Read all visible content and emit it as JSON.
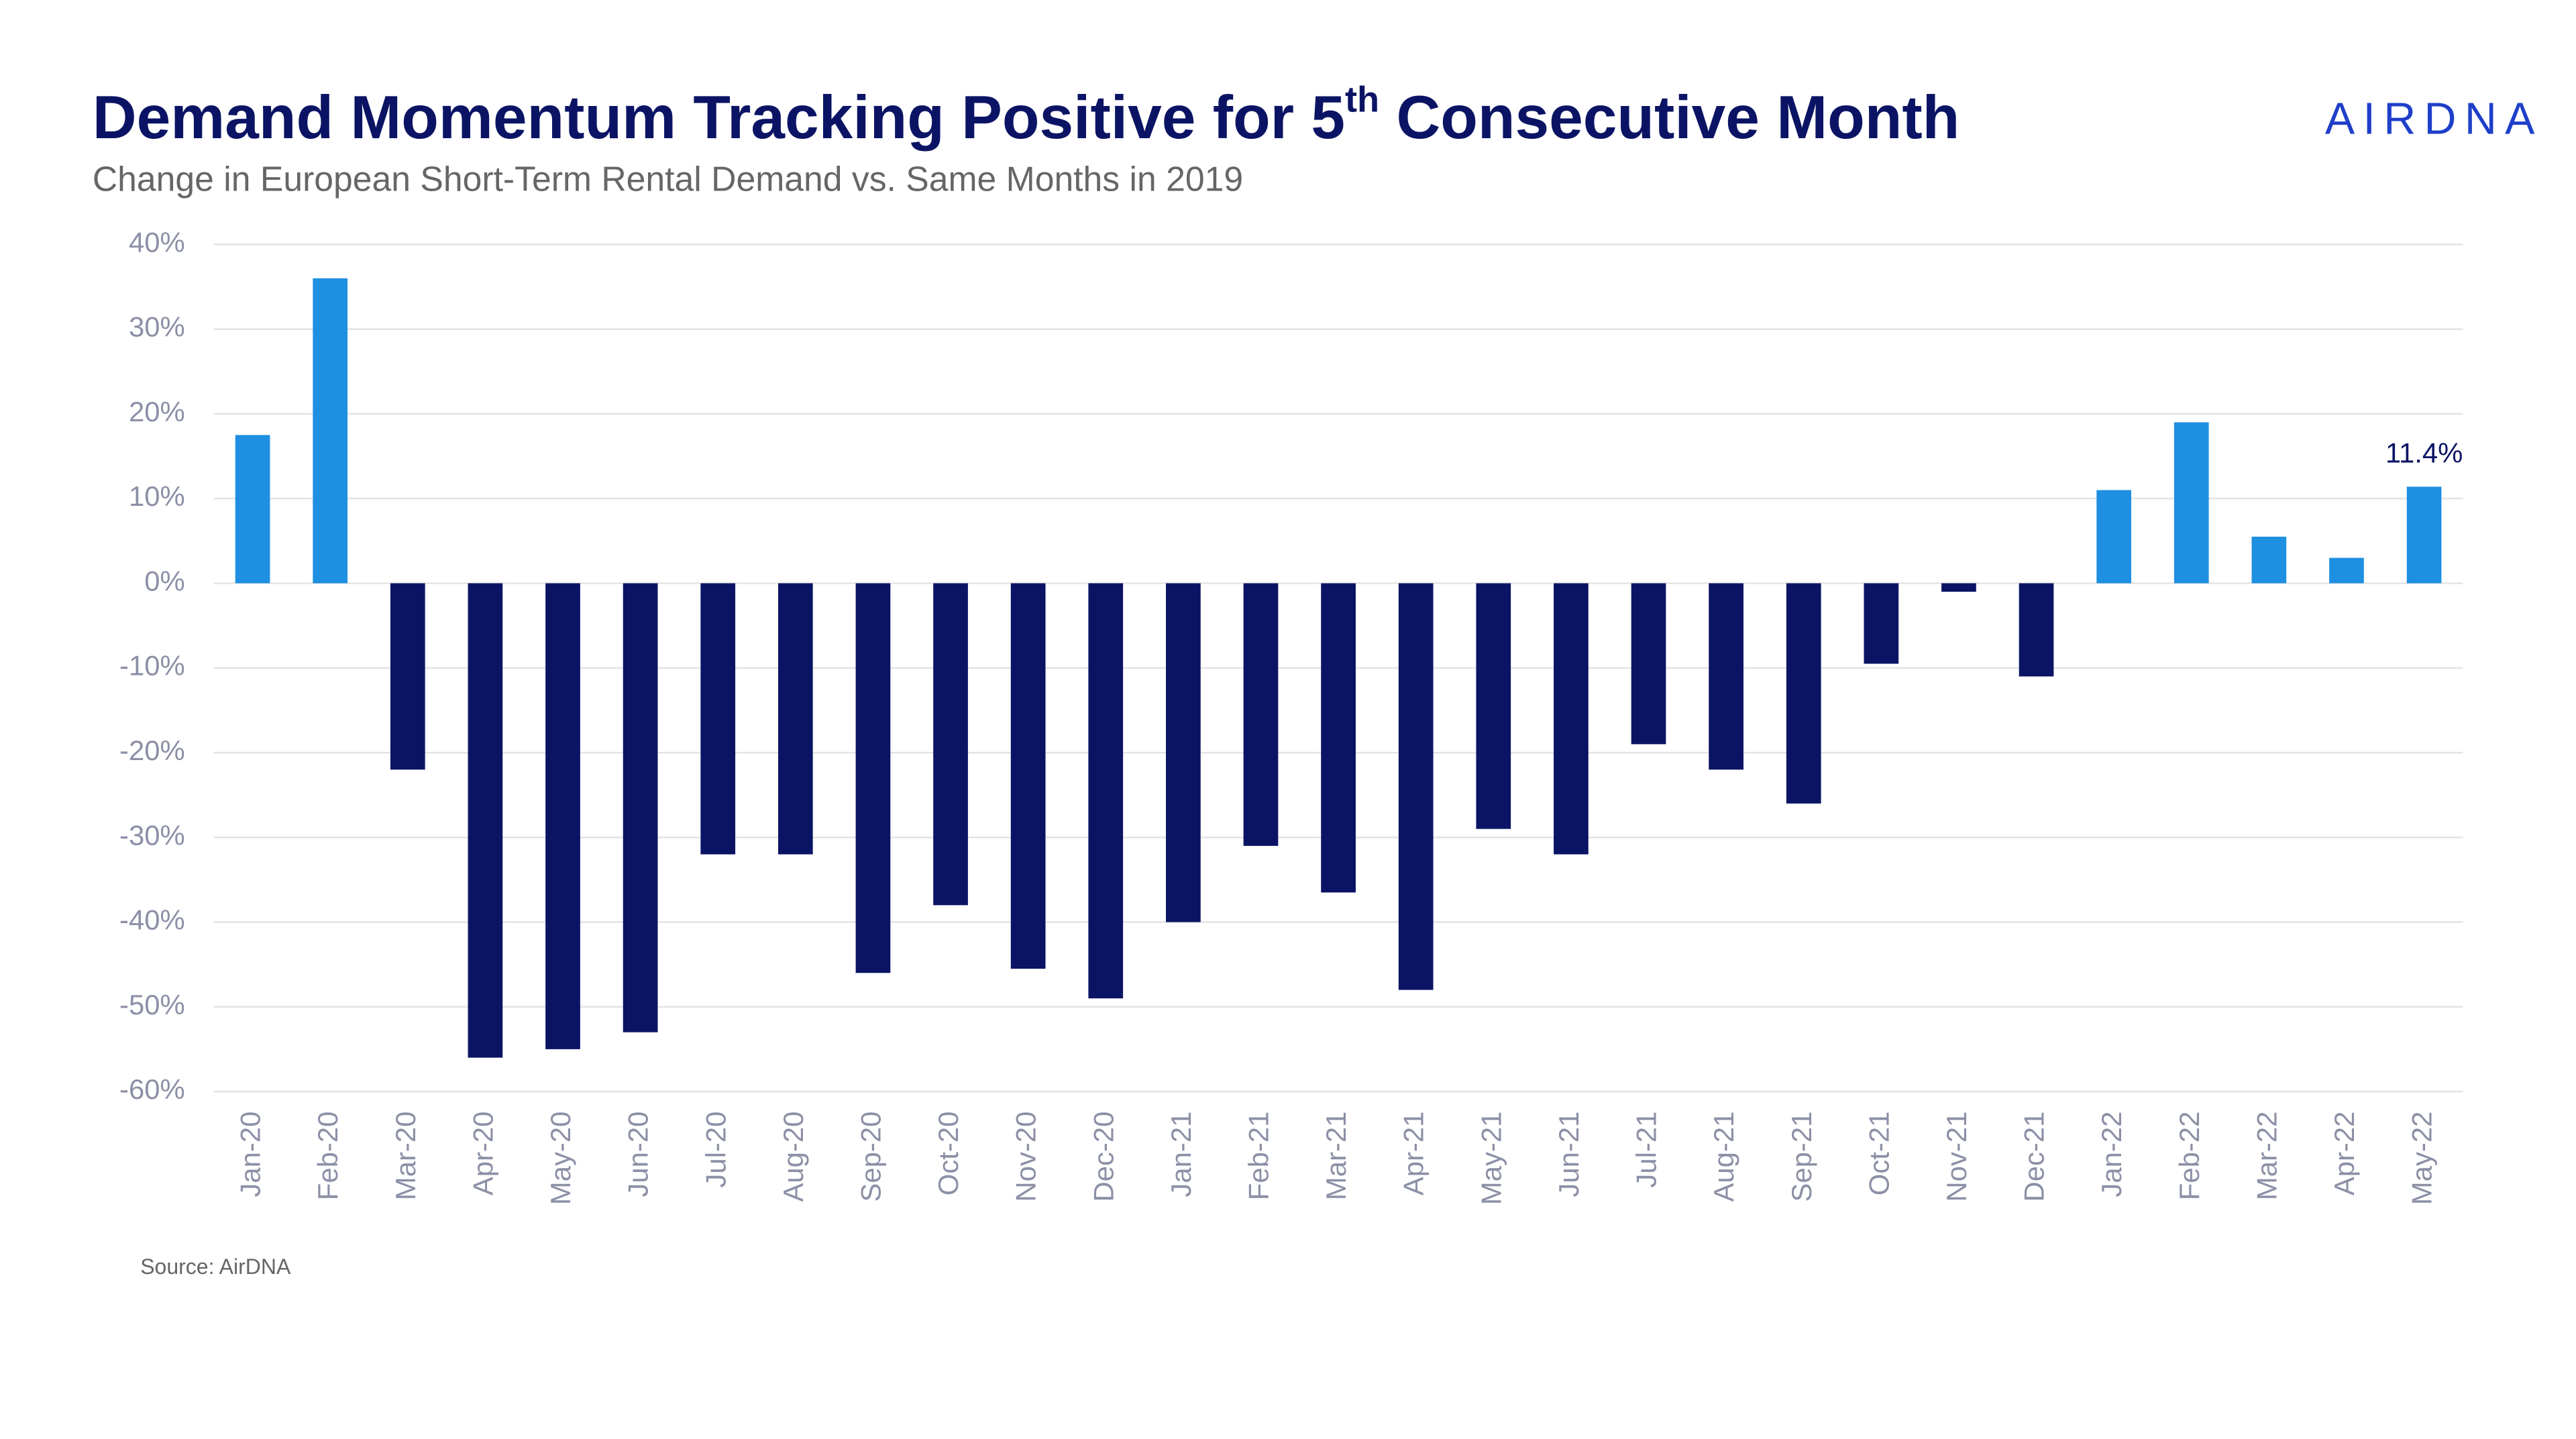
{
  "chart_data": {
    "type": "bar",
    "title": [
      "Demand Momentum Tracking Positive for 5",
      "th",
      " Consecutive Month"
    ],
    "subtitle": "Change in European Short-Term Rental Demand vs. Same Months in 2019",
    "logo": "AIRDNA",
    "source": "Source: AirDNA",
    "categories": [
      "Jan-20",
      "Feb-20",
      "Mar-20",
      "Apr-20",
      "May-20",
      "Jun-20",
      "Jul-20",
      "Aug-20",
      "Sep-20",
      "Oct-20",
      "Nov-20",
      "Dec-20",
      "Jan-21",
      "Feb-21",
      "Mar-21",
      "Apr-21",
      "May-21",
      "Jun-21",
      "Jul-21",
      "Aug-21",
      "Sep-21",
      "Oct-21",
      "Nov-21",
      "Dec-21",
      "Jan-22",
      "Feb-22",
      "Mar-22",
      "Apr-22",
      "May-22"
    ],
    "values": [
      17.5,
      36,
      -22,
      -56,
      -55,
      -53,
      -32,
      -32,
      -46,
      -38,
      -45.5,
      -49,
      -40,
      -31,
      -36.5,
      -48,
      -29,
      -32,
      -19,
      -22,
      -26,
      -9.5,
      -1,
      -11,
      11,
      19,
      5.5,
      3,
      11.4
    ],
    "value_labels": [
      null,
      null,
      null,
      null,
      null,
      null,
      null,
      null,
      null,
      null,
      null,
      null,
      null,
      null,
      null,
      null,
      null,
      null,
      null,
      null,
      null,
      null,
      null,
      null,
      null,
      null,
      null,
      null,
      "11.4%"
    ],
    "color_positive": "#1e8fe1",
    "color_negative": "#0b1464",
    "ylim": [
      -60,
      40
    ],
    "yticks": [
      {
        "value": -60,
        "label": "-60%"
      },
      {
        "value": -50,
        "label": "-50%"
      },
      {
        "value": -40,
        "label": "-40%"
      },
      {
        "value": -30,
        "label": "-30%"
      },
      {
        "value": -20,
        "label": "-20%"
      },
      {
        "value": -10,
        "label": "-10%"
      },
      {
        "value": 0,
        "label": "0%"
      },
      {
        "value": 10,
        "label": "10%"
      },
      {
        "value": 20,
        "label": "20%"
      },
      {
        "value": 30,
        "label": "30%"
      },
      {
        "value": 40,
        "label": "40%"
      }
    ],
    "grid": true
  }
}
